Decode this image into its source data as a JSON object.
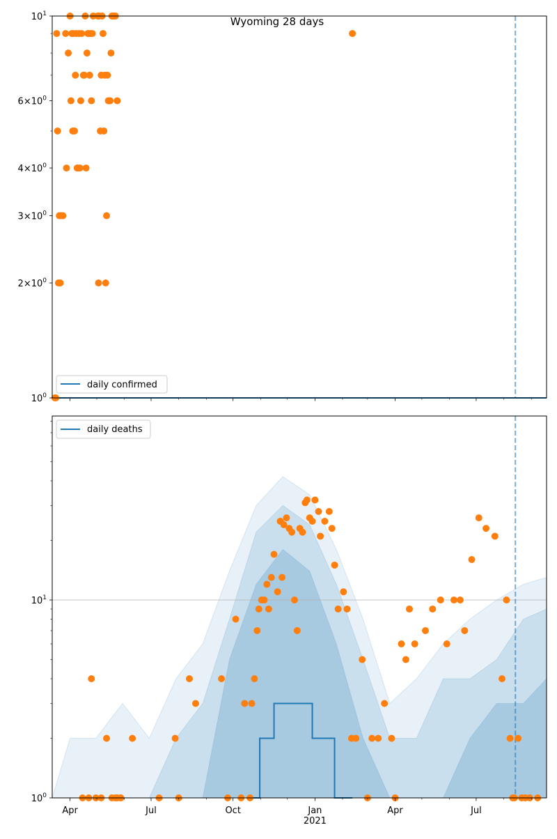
{
  "chart_data": [
    {
      "type": "scatter",
      "title": "Wyoming 28 days",
      "yscale": "log",
      "ylim": [
        1,
        10
      ],
      "xlim": [
        "2020-03-12",
        "2021-09-18"
      ],
      "yticks": [
        {
          "value": 1,
          "label": "10^0",
          "base": "10",
          "exp": "0"
        },
        {
          "value": 2,
          "label": "2×10^0",
          "base": "2×10",
          "exp": "0"
        },
        {
          "value": 3,
          "label": "3×10^0",
          "base": "3×10",
          "exp": "0"
        },
        {
          "value": 4,
          "label": "4×10^0",
          "base": "4×10",
          "exp": "0"
        },
        {
          "value": 6,
          "label": "6×10^0",
          "base": "6×10",
          "exp": "0"
        },
        {
          "value": 10,
          "label": "10^1",
          "base": "10",
          "exp": "1"
        }
      ],
      "legend": {
        "position": "lower-left",
        "entries": [
          "daily confirmed"
        ]
      },
      "vline_date": "2021-08-14",
      "series": [
        {
          "name": "daily confirmed",
          "kind": "line",
          "x": [
            "2020-03-12",
            "2021-09-18"
          ],
          "y": [
            1,
            1
          ]
        },
        {
          "kind": "points",
          "x": [
            "2020-03-15",
            "2020-03-16",
            "2020-03-17",
            "2020-03-18",
            "2020-03-19",
            "2020-03-20",
            "2020-03-21",
            "2020-03-22",
            "2020-03-24",
            "2020-03-27",
            "2020-03-28",
            "2020-03-30",
            "2020-04-01",
            "2020-04-02",
            "2020-04-03",
            "2020-04-04",
            "2020-04-05",
            "2020-04-06",
            "2020-04-07",
            "2020-04-08",
            "2020-04-09",
            "2020-04-10",
            "2020-04-11",
            "2020-04-12",
            "2020-04-13",
            "2020-04-14",
            "2020-04-16",
            "2020-04-17",
            "2020-04-18",
            "2020-04-19",
            "2020-04-20",
            "2020-04-21",
            "2020-04-22",
            "2020-04-23",
            "2020-04-24",
            "2020-04-25",
            "2020-04-26",
            "2020-04-27",
            "2020-05-02",
            "2020-05-03",
            "2020-05-04",
            "2020-05-05",
            "2020-05-06",
            "2020-05-07",
            "2020-05-08",
            "2020-05-09",
            "2020-05-10",
            "2020-05-11",
            "2020-05-12",
            "2020-05-13",
            "2020-05-14",
            "2020-05-15",
            "2020-05-16",
            "2020-05-17",
            "2020-05-18",
            "2020-05-19",
            "2020-05-20",
            "2020-05-21",
            "2020-05-22",
            "2020-05-24",
            "2021-02-12"
          ],
          "y": [
            1,
            1,
            9,
            5,
            2,
            3,
            2,
            3,
            3,
            9,
            4,
            8,
            10,
            6,
            9,
            5,
            9,
            5,
            7,
            9,
            4,
            4,
            9,
            4,
            6,
            9,
            7,
            7,
            10,
            4,
            8,
            9,
            9,
            7,
            9,
            6,
            9,
            10,
            10,
            2,
            10,
            5,
            7,
            10,
            9,
            5,
            7,
            2,
            3,
            7,
            6,
            6,
            6,
            8,
            10,
            10,
            10,
            10,
            10,
            6,
            9
          ]
        }
      ]
    },
    {
      "type": "scatter",
      "yscale": "log",
      "ylim": [
        1,
        85
      ],
      "xlim": [
        "2020-03-12",
        "2021-09-18"
      ],
      "yticks": [
        {
          "value": 1,
          "label": "10^0",
          "base": "10",
          "exp": "0"
        },
        {
          "value": 10,
          "label": "10^1",
          "base": "10",
          "exp": "1"
        }
      ],
      "xticks": [
        {
          "date": "2020-04-01",
          "label": "Apr"
        },
        {
          "date": "2020-07-01",
          "label": "Jul"
        },
        {
          "date": "2020-10-01",
          "label": "Oct"
        },
        {
          "date": "2021-01-01",
          "label": "Jan",
          "sublabel": "2021"
        },
        {
          "date": "2021-04-01",
          "label": "Apr"
        },
        {
          "date": "2021-07-01",
          "label": "Jul"
        }
      ],
      "grid": "y-major",
      "legend": {
        "position": "upper-left",
        "entries": [
          "daily deaths"
        ]
      },
      "vline_date": "2021-08-14",
      "bands": [
        {
          "lower": [
            1,
            1,
            1,
            1,
            1,
            1,
            1,
            1,
            1,
            1,
            1,
            1,
            1,
            1,
            1,
            1,
            1,
            1,
            1,
            1
          ],
          "upper": [
            1,
            2,
            2,
            3,
            2,
            4,
            6,
            14,
            30,
            42,
            34,
            18,
            8,
            3,
            4,
            6,
            8,
            10,
            12,
            13
          ],
          "opacity": 0.1
        },
        {
          "lower": [
            1,
            1,
            1,
            1,
            1,
            1,
            1,
            1,
            1,
            1,
            1,
            1,
            1,
            1,
            1,
            1,
            1,
            1,
            1,
            1
          ],
          "upper": [
            1,
            1,
            1,
            1,
            1,
            2,
            3,
            8,
            22,
            30,
            24,
            12,
            5,
            2,
            2,
            4,
            4,
            5,
            8,
            9
          ],
          "opacity": 0.15
        },
        {
          "lower": [
            1,
            1,
            1,
            1,
            1,
            1,
            1,
            1,
            1,
            1,
            1,
            1,
            1,
            1,
            1,
            1,
            1,
            1,
            1,
            1
          ],
          "upper": [
            1,
            1,
            1,
            1,
            1,
            1,
            1,
            5,
            12,
            18,
            14,
            6,
            2,
            1,
            1,
            1,
            2,
            3,
            3,
            4
          ],
          "opacity": 0.2
        }
      ],
      "band_x": [
        "2020-03-12",
        "2020-04-01",
        "2020-04-30",
        "2020-05-30",
        "2020-06-29",
        "2020-07-29",
        "2020-08-28",
        "2020-09-27",
        "2020-10-27",
        "2020-11-26",
        "2020-12-26",
        "2021-01-25",
        "2021-02-24",
        "2021-03-26",
        "2021-04-25",
        "2021-05-25",
        "2021-06-24",
        "2021-07-24",
        "2021-08-23",
        "2021-09-18"
      ],
      "series": [
        {
          "name": "daily deaths",
          "kind": "line",
          "x": [
            "2020-10-18",
            "2020-10-30",
            "2020-10-31",
            "2020-11-15",
            "2020-11-16",
            "2020-12-28",
            "2020-12-29",
            "2021-01-22",
            "2021-01-23",
            "2021-02-12"
          ],
          "y": [
            1,
            1,
            2,
            2,
            3,
            3,
            2,
            2,
            1,
            1
          ]
        },
        {
          "kind": "points",
          "x": [
            "2020-04-15",
            "2020-04-22",
            "2020-04-25",
            "2020-04-30",
            "2020-05-06",
            "2020-05-12",
            "2020-05-18",
            "2020-05-22",
            "2020-05-24",
            "2020-05-28",
            "2020-06-10",
            "2020-07-10",
            "2020-07-28",
            "2020-08-01",
            "2020-08-13",
            "2020-08-20",
            "2020-09-18",
            "2020-09-25",
            "2020-10-04",
            "2020-10-10",
            "2020-10-14",
            "2020-10-20",
            "2020-10-22",
            "2020-10-25",
            "2020-10-28",
            "2020-10-30",
            "2020-11-02",
            "2020-11-05",
            "2020-11-08",
            "2020-11-10",
            "2020-11-13",
            "2020-11-16",
            "2020-11-20",
            "2020-11-23",
            "2020-11-25",
            "2020-11-27",
            "2020-11-30",
            "2020-12-03",
            "2020-12-06",
            "2020-12-09",
            "2020-12-12",
            "2020-12-15",
            "2020-12-18",
            "2020-12-21",
            "2020-12-23",
            "2020-12-26",
            "2020-12-29",
            "2021-01-01",
            "2021-01-05",
            "2021-01-07",
            "2021-01-12",
            "2021-01-17",
            "2021-01-20",
            "2021-01-23",
            "2021-01-27",
            "2021-02-02",
            "2021-02-06",
            "2021-02-11",
            "2021-02-16",
            "2021-02-23",
            "2021-03-01",
            "2021-03-06",
            "2021-03-13",
            "2021-03-20",
            "2021-03-28",
            "2021-04-01",
            "2021-04-08",
            "2021-04-13",
            "2021-04-17",
            "2021-04-23",
            "2021-05-05",
            "2021-05-13",
            "2021-05-22",
            "2021-05-29",
            "2021-06-06",
            "2021-06-13",
            "2021-06-18",
            "2021-06-26",
            "2021-07-04",
            "2021-07-12",
            "2021-07-22",
            "2021-07-30",
            "2021-08-04",
            "2021-08-08",
            "2021-08-11",
            "2021-08-13",
            "2021-08-17",
            "2021-08-21",
            "2021-08-25",
            "2021-08-30",
            "2021-09-08"
          ],
          "y": [
            1,
            1,
            4,
            1,
            1,
            2,
            1,
            1,
            1,
            1,
            2,
            1,
            2,
            1,
            4,
            3,
            4,
            1,
            8,
            1,
            3,
            1,
            3,
            4,
            7,
            9,
            10,
            10,
            12,
            9,
            13,
            17,
            11,
            25,
            13,
            24,
            26,
            23,
            22,
            10,
            7,
            23,
            22,
            31,
            32,
            26,
            25,
            32,
            28,
            21,
            25,
            28,
            23,
            15,
            9,
            11,
            9,
            2,
            2,
            5,
            1,
            2,
            2,
            3,
            2,
            1,
            6,
            5,
            9,
            6,
            7,
            9,
            10,
            6,
            10,
            10,
            7,
            16,
            26,
            23,
            21,
            4,
            10,
            2,
            1,
            1,
            2,
            1,
            1,
            1,
            1
          ]
        }
      ]
    }
  ]
}
